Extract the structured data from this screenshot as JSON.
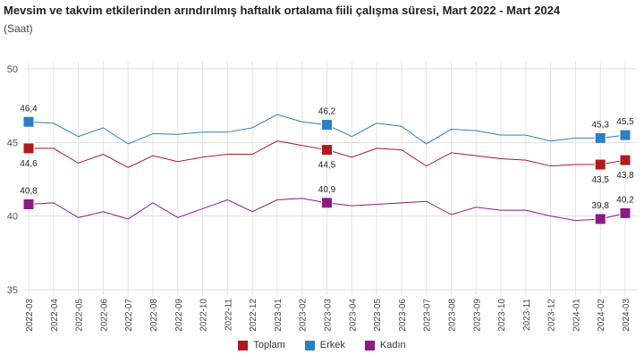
{
  "chart_data": {
    "type": "line",
    "title": "Mevsim ve takvim etkilerinden arındırılmış haftalık ortalama fiili çalışma süresi, Mart 2022 - Mart 2024",
    "subtitle": "(Saat)",
    "ylim": [
      35,
      50
    ],
    "yticks": [
      35,
      40,
      45,
      50
    ],
    "grid": true,
    "legend": "bottom",
    "categories": [
      "2022-03",
      "2022-04",
      "2022-05",
      "2022-06",
      "2022-07",
      "2022-08",
      "2022-09",
      "2022-10",
      "2022-11",
      "2022-12",
      "2023-01",
      "2023-02",
      "2023-03",
      "2023-04",
      "2023-05",
      "2023-06",
      "2023-07",
      "2023-08",
      "2023-09",
      "2023-10",
      "2023-11",
      "2023-12",
      "2024-01",
      "2024-02",
      "2024-03"
    ],
    "series": [
      {
        "name": "Toplam",
        "color": "#b0191e",
        "values": [
          44.6,
          44.6,
          43.6,
          44.2,
          43.3,
          44.1,
          43.7,
          44.0,
          44.2,
          44.2,
          45.1,
          44.8,
          44.5,
          44.0,
          44.6,
          44.5,
          43.4,
          44.3,
          44.1,
          43.9,
          43.8,
          43.4,
          43.5,
          43.5,
          43.8
        ]
      },
      {
        "name": "Erkek",
        "color": "#2b7fc3",
        "values": [
          46.4,
          46.3,
          45.4,
          46.0,
          44.9,
          45.6,
          45.55,
          45.7,
          45.7,
          46.0,
          46.9,
          46.4,
          46.2,
          45.4,
          46.3,
          46.1,
          44.9,
          45.9,
          45.8,
          45.5,
          45.5,
          45.1,
          45.3,
          45.3,
          45.5
        ]
      },
      {
        "name": "Kadın",
        "color": "#8e1a83",
        "values": [
          40.8,
          40.9,
          39.9,
          40.3,
          39.8,
          40.9,
          39.9,
          40.5,
          41.1,
          40.3,
          41.1,
          41.2,
          40.9,
          40.7,
          40.8,
          40.9,
          41.0,
          40.1,
          40.6,
          40.4,
          40.4,
          40.0,
          39.7,
          39.8,
          40.2
        ]
      }
    ],
    "labeled_points": [
      {
        "series": 0,
        "index": 0,
        "label": "44,6",
        "pos": "below"
      },
      {
        "series": 0,
        "index": 12,
        "label": "44,5",
        "pos": "below"
      },
      {
        "series": 0,
        "index": 23,
        "label": "43,5",
        "pos": "below"
      },
      {
        "series": 0,
        "index": 24,
        "label": "43,8",
        "pos": "below"
      },
      {
        "series": 1,
        "index": 0,
        "label": "46,4",
        "pos": "above"
      },
      {
        "series": 1,
        "index": 12,
        "label": "46,2",
        "pos": "above"
      },
      {
        "series": 1,
        "index": 23,
        "label": "45,3",
        "pos": "above"
      },
      {
        "series": 1,
        "index": 24,
        "label": "45,5",
        "pos": "above"
      },
      {
        "series": 2,
        "index": 0,
        "label": "40,8",
        "pos": "above"
      },
      {
        "series": 2,
        "index": 12,
        "label": "40,9",
        "pos": "above"
      },
      {
        "series": 2,
        "index": 23,
        "label": "39,8",
        "pos": "above"
      },
      {
        "series": 2,
        "index": 24,
        "label": "40,2",
        "pos": "above"
      }
    ]
  }
}
